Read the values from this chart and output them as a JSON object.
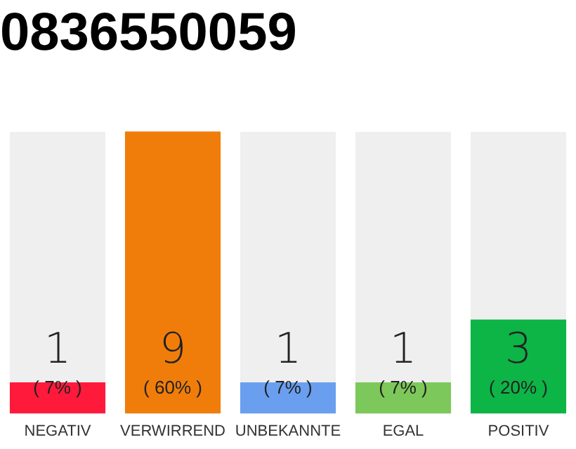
{
  "chart_data": {
    "type": "bar",
    "title": "0836550059",
    "categories": [
      "NEGATIV",
      "VERWIRREND",
      "UNBEKANNTE",
      "EGAL",
      "POSITIV"
    ],
    "values": [
      1,
      9,
      1,
      1,
      3
    ],
    "colors": [
      "#ff1a3c",
      "#f07d0a",
      "#6a9ff0",
      "#7dc85a",
      "#0db446"
    ],
    "ylim": [
      0,
      9
    ],
    "data_labels": true,
    "grid": false,
    "legend": false,
    "tick_labels": "x",
    "annotations": [
      "( 7% )",
      "( 60% )",
      "( 7% )",
      "( 7% )",
      "( 20% )"
    ]
  }
}
